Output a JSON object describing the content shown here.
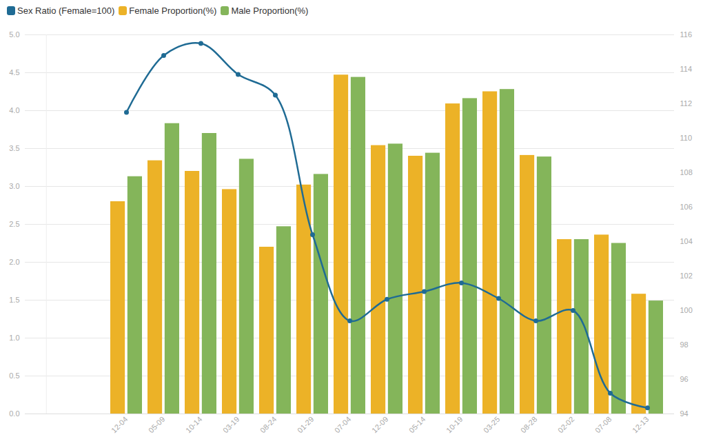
{
  "chart_data": {
    "type": "bar",
    "categories": [
      null,
      null,
      "12-04",
      "05-09",
      "10-14",
      "03-19",
      "08-24",
      "01-29",
      "07-04",
      "12-09",
      "05-14",
      "10-19",
      "03-25",
      "08-28",
      "02-02",
      "07-08",
      "12-13"
    ],
    "series": [
      {
        "name": "Sex Ratio (Female=100)",
        "type": "line",
        "axis": "y2",
        "color": "#1f6b94",
        "marker": "circle",
        "values": [
          null,
          null,
          111.5,
          114.8,
          115.5,
          113.7,
          112.5,
          104.4,
          99.4,
          100.65,
          101.1,
          101.6,
          100.7,
          99.4,
          100.0,
          95.2,
          94.35
        ]
      },
      {
        "name": "Female Proportion(%)",
        "type": "bar",
        "color": "#ecb227",
        "values": [
          null,
          null,
          2.8,
          3.34,
          3.2,
          2.96,
          2.2,
          3.02,
          4.47,
          3.54,
          3.4,
          4.09,
          4.25,
          3.41,
          2.3,
          2.36,
          1.58
        ]
      },
      {
        "name": "Male Proportion(%)",
        "type": "bar",
        "color": "#84b55a",
        "values": [
          null,
          null,
          3.13,
          3.83,
          3.7,
          3.36,
          2.47,
          3.16,
          4.44,
          3.56,
          3.44,
          4.16,
          4.28,
          3.39,
          2.3,
          2.25,
          1.49
        ]
      }
    ],
    "ylim": [
      0,
      5
    ],
    "yticks": [
      0,
      0.5,
      1,
      1.5,
      2,
      2.5,
      3,
      3.5,
      4,
      4.5,
      5
    ],
    "y2lim": [
      94,
      116
    ],
    "y2ticks": [
      94,
      96,
      98,
      100,
      102,
      104,
      106,
      108,
      110,
      112,
      114,
      116
    ],
    "grid": true,
    "legend": "top-left"
  }
}
